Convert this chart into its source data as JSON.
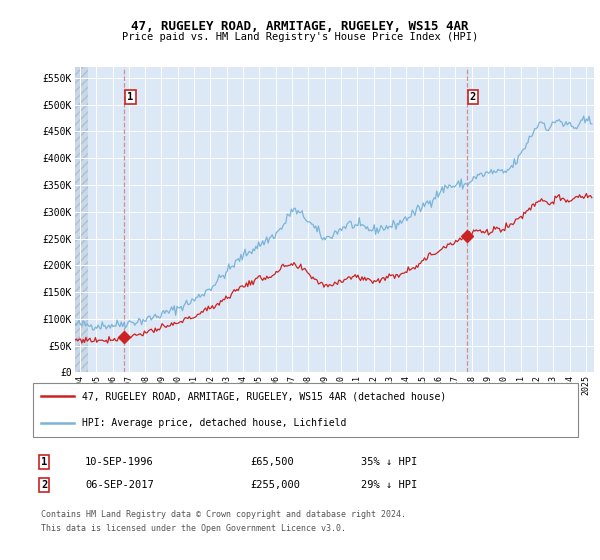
{
  "title1": "47, RUGELEY ROAD, ARMITAGE, RUGELEY, WS15 4AR",
  "title2": "Price paid vs. HM Land Registry's House Price Index (HPI)",
  "ylim": [
    0,
    570000
  ],
  "yticks": [
    0,
    50000,
    100000,
    150000,
    200000,
    250000,
    300000,
    350000,
    400000,
    450000,
    500000,
    550000
  ],
  "ytick_labels": [
    "£0",
    "£50K",
    "£100K",
    "£150K",
    "£200K",
    "£250K",
    "£300K",
    "£350K",
    "£400K",
    "£450K",
    "£500K",
    "£550K"
  ],
  "xlim_start": 1993.7,
  "xlim_end": 2025.5,
  "xticks": [
    1994,
    1995,
    1996,
    1997,
    1998,
    1999,
    2000,
    2001,
    2002,
    2003,
    2004,
    2005,
    2006,
    2007,
    2008,
    2009,
    2010,
    2011,
    2012,
    2013,
    2014,
    2015,
    2016,
    2017,
    2018,
    2019,
    2020,
    2021,
    2022,
    2023,
    2024,
    2025
  ],
  "hpi_color": "#7ab4d8",
  "price_color": "#cc2222",
  "vline_color": "#cc8888",
  "sale1_date": 1996.71,
  "sale1_price": 65500,
  "sale1_label": "1",
  "sale2_date": 2017.69,
  "sale2_price": 255000,
  "sale2_label": "2",
  "legend_line1": "47, RUGELEY ROAD, ARMITAGE, RUGELEY, WS15 4AR (detached house)",
  "legend_line2": "HPI: Average price, detached house, Lichfield",
  "footnote1": "Contains HM Land Registry data © Crown copyright and database right 2024.",
  "footnote2": "This data is licensed under the Open Government Licence v3.0.",
  "bg_color": "#dce8f5",
  "hatch_region_end": 1994.5,
  "grid_color": "#ffffff"
}
